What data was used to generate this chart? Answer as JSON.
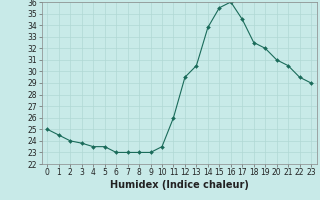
{
  "x": [
    0,
    1,
    2,
    3,
    4,
    5,
    6,
    7,
    8,
    9,
    10,
    11,
    12,
    13,
    14,
    15,
    16,
    17,
    18,
    19,
    20,
    21,
    22,
    23
  ],
  "y": [
    25.0,
    24.5,
    24.0,
    23.8,
    23.5,
    23.5,
    23.0,
    23.0,
    23.0,
    23.0,
    23.5,
    26.0,
    29.5,
    30.5,
    33.8,
    35.5,
    36.0,
    34.5,
    32.5,
    32.0,
    31.0,
    30.5,
    29.5,
    29.0
  ],
  "line_color": "#1a6b5a",
  "marker": "D",
  "marker_size": 2.0,
  "bg_color": "#c8eae8",
  "grid_color": "#b0d8d4",
  "xlabel": "Humidex (Indice chaleur)",
  "ylim": [
    22,
    36
  ],
  "xlim": [
    -0.5,
    23.5
  ],
  "yticks": [
    22,
    23,
    24,
    25,
    26,
    27,
    28,
    29,
    30,
    31,
    32,
    33,
    34,
    35,
    36
  ],
  "xticks": [
    0,
    1,
    2,
    3,
    4,
    5,
    6,
    7,
    8,
    9,
    10,
    11,
    12,
    13,
    14,
    15,
    16,
    17,
    18,
    19,
    20,
    21,
    22,
    23
  ],
  "xtick_labels": [
    "0",
    "1",
    "2",
    "3",
    "4",
    "5",
    "6",
    "7",
    "8",
    "9",
    "10",
    "11",
    "12",
    "13",
    "14",
    "15",
    "16",
    "17",
    "18",
    "19",
    "20",
    "21",
    "22",
    "23"
  ],
  "ytick_labels": [
    "22",
    "23",
    "24",
    "25",
    "26",
    "27",
    "28",
    "29",
    "30",
    "31",
    "32",
    "33",
    "34",
    "35",
    "36"
  ],
  "tick_fontsize": 5.5,
  "xlabel_fontsize": 7.0,
  "line_width": 0.8
}
